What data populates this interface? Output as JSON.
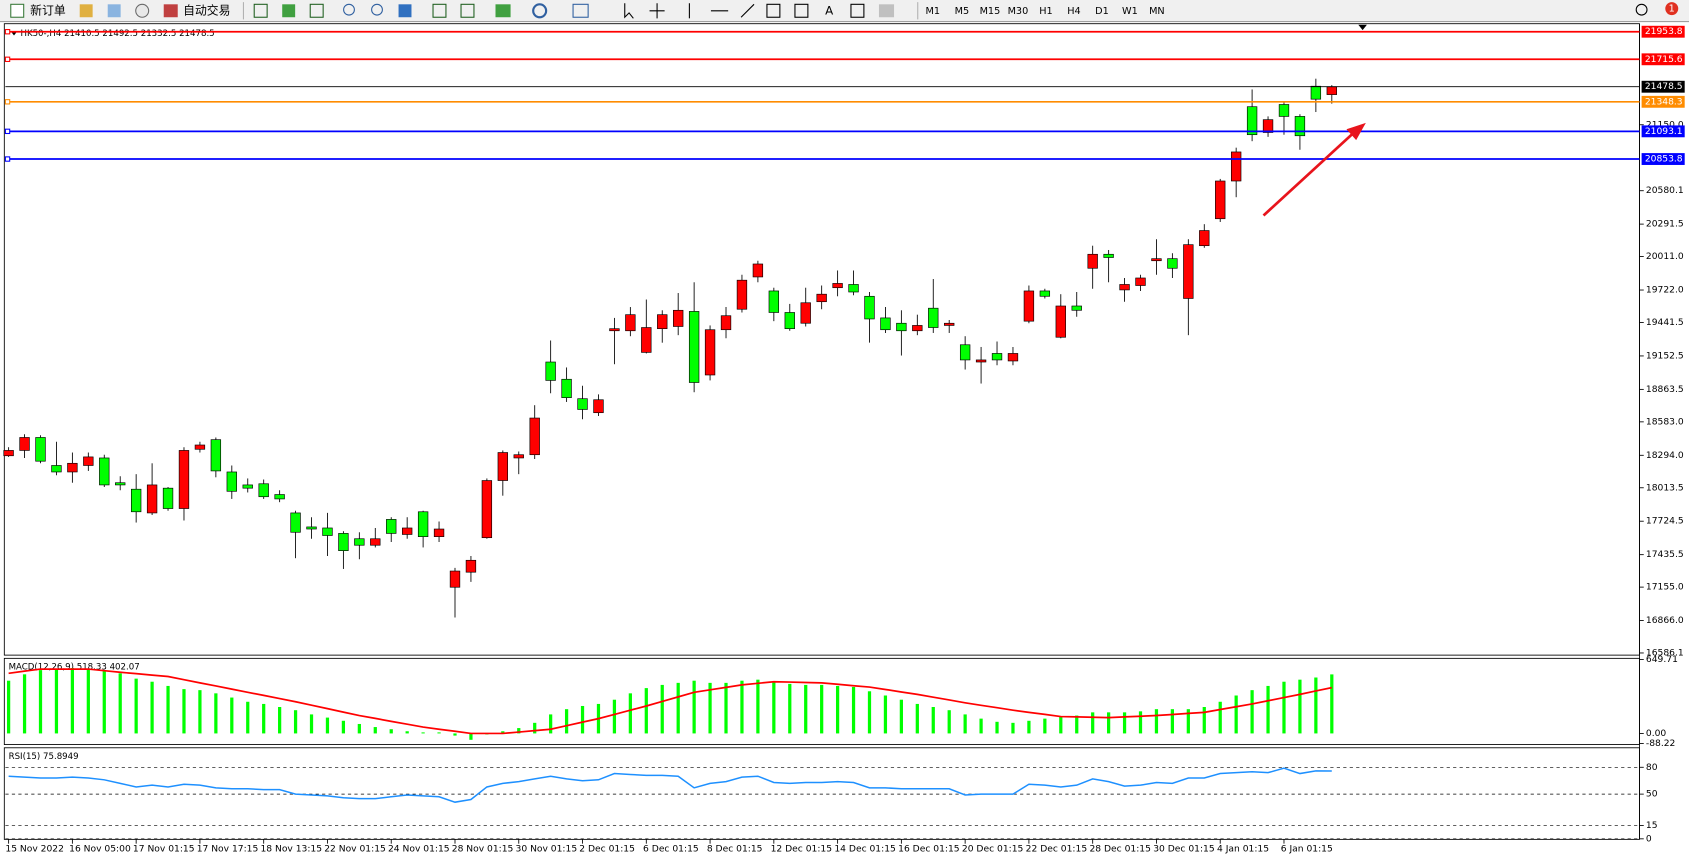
{
  "toolbar": {
    "new_order": "新订单",
    "auto_trading": "自动交易",
    "text_tool": "A",
    "periods": [
      "M1",
      "M5",
      "M15",
      "M30",
      "H1",
      "H4",
      "D1",
      "W1",
      "MN"
    ],
    "notification_count": 1
  },
  "chart_data": [
    {
      "type": "candlestick",
      "title": "HK50-,H4  21410.5 21492.5 21332.5 21478.5",
      "categories": [
        "15 Nov 2022",
        null,
        null,
        null,
        "16 Nov 05:00",
        null,
        null,
        null,
        "17 Nov 01:15",
        null,
        null,
        null,
        "17 Nov 17:15",
        null,
        null,
        null,
        "18 Nov 13:15",
        null,
        null,
        null,
        "22 Nov 01:15",
        null,
        null,
        null,
        "24 Nov 01:15",
        null,
        null,
        null,
        "28 Nov 01:15",
        null,
        null,
        null,
        "30 Nov 01:15",
        null,
        null,
        null,
        "2 Dec 01:15",
        null,
        null,
        null,
        "6 Dec 01:15",
        null,
        null,
        null,
        "8 Dec 01:15",
        null,
        null,
        null,
        "12 Dec 01:15",
        null,
        null,
        null,
        "14 Dec 01:15",
        null,
        null,
        null,
        "16 Dec 01:15",
        null,
        null,
        null,
        "20 Dec 01:15",
        null,
        null,
        null,
        "22 Dec 01:15",
        null,
        null,
        null,
        "28 Dec 01:15",
        null,
        null,
        null,
        "30 Dec 01:15",
        null,
        null,
        null,
        "4 Jan 01:15",
        null,
        null,
        null,
        "6 Jan 01:15",
        null,
        null,
        null
      ],
      "open": [
        18290,
        18336,
        18448,
        18206,
        18150,
        18206,
        18271,
        18057,
        18001,
        17796,
        18010,
        17834,
        18346,
        18429,
        18150,
        18038,
        18048,
        17955,
        17796,
        17675,
        17666,
        17619,
        17573,
        17517,
        17740,
        17610,
        17806,
        17591,
        17154,
        17284,
        17582,
        18076,
        18271,
        18299,
        19100,
        18951,
        18783,
        18662,
        19370,
        19370,
        19183,
        19388,
        19407,
        19537,
        18988,
        19379,
        19556,
        19835,
        19714,
        19528,
        19435,
        19621,
        19742,
        19770,
        19668,
        19481,
        19435,
        19370,
        19565,
        19416,
        19249,
        19100,
        19174,
        19109,
        19453,
        19714,
        19314,
        19584,
        19910,
        20031,
        19723,
        19761,
        19975,
        19993,
        19649,
        20105,
        20338,
        20664,
        21306,
        21083,
        21325,
        21222,
        21483,
        21410.5
      ],
      "high": [
        18364,
        18476,
        18467,
        18411,
        18318,
        18318,
        18299,
        18113,
        18131,
        18225,
        18020,
        18364,
        18411,
        18448,
        18206,
        18094,
        18085,
        17992,
        17815,
        17759,
        17796,
        17638,
        17629,
        17666,
        17759,
        17759,
        17815,
        17722,
        17321,
        17424,
        18094,
        18336,
        18327,
        18727,
        19286,
        19053,
        18895,
        18820,
        19481,
        19575,
        19640,
        19547,
        19696,
        19789,
        19416,
        19575,
        19854,
        19975,
        19742,
        19602,
        19742,
        19761,
        19891,
        19891,
        19705,
        19575,
        19547,
        19509,
        19817,
        19463,
        19323,
        19230,
        19277,
        19230,
        19761,
        19733,
        19686,
        19705,
        20105,
        20068,
        19826,
        19854,
        20161,
        20040,
        20161,
        20291,
        20682,
        20952,
        21455,
        21222,
        21353,
        21241,
        21548,
        21492.5
      ],
      "low": [
        18280,
        18271,
        18225,
        18122,
        18057,
        18159,
        18020,
        17992,
        17713,
        17778,
        17815,
        17731,
        18318,
        18104,
        17917,
        17973,
        17917,
        17889,
        17405,
        17573,
        17424,
        17312,
        17396,
        17498,
        17545,
        17573,
        17498,
        17545,
        16893,
        17200,
        17573,
        17945,
        18131,
        18262,
        18830,
        18755,
        18606,
        18634,
        19081,
        19323,
        19174,
        19267,
        19332,
        18839,
        18941,
        19305,
        19528,
        19789,
        19453,
        19370,
        19407,
        19556,
        19668,
        19677,
        19267,
        19351,
        19156,
        19332,
        19351,
        19351,
        19035,
        18914,
        19072,
        19072,
        19435,
        19649,
        19305,
        19491,
        19733,
        19789,
        19621,
        19714,
        19854,
        19826,
        19332,
        20087,
        20310,
        20524,
        21008,
        21045,
        21064,
        20934,
        21260,
        21332.5
      ],
      "close": [
        18336,
        18448,
        18243,
        18150,
        18225,
        18280,
        18038,
        18038,
        17806,
        18038,
        17834,
        18336,
        18383,
        18159,
        17983,
        18010,
        17936,
        17917,
        17629,
        17657,
        17601,
        17470,
        17517,
        17573,
        17619,
        17666,
        17591,
        17657,
        17294,
        17387,
        18076,
        18318,
        18299,
        18616,
        18941,
        18792,
        18690,
        18774,
        19388,
        19509,
        19398,
        19509,
        19547,
        18923,
        19379,
        19500,
        19807,
        19947,
        19528,
        19388,
        19612,
        19686,
        19779,
        19705,
        19472,
        19379,
        19370,
        19416,
        19398,
        19435,
        19118,
        19118,
        19118,
        19174,
        19714,
        19668,
        19584,
        19547,
        20031,
        20003,
        19770,
        19826,
        19993,
        19910,
        20114,
        20236,
        20664,
        20915,
        21064,
        21194,
        21222,
        21055,
        21371,
        21478.5
      ],
      "up_color": "#ff0000",
      "down_color": "#00ff00",
      "ylim": [
        16586.1,
        22023.1
      ],
      "yticks": [
        16586.1,
        {
          "value": 16866,
          "label": "16866.0"
        },
        {
          "value": 17155,
          "label": "17155.0"
        },
        17435.5,
        17724.5,
        18013.5,
        {
          "value": 18294,
          "label": "18294.0"
        },
        {
          "value": 18583,
          "label": "18583.0"
        },
        18863.5,
        19152.5,
        19441.5,
        {
          "value": 19722,
          "label": "19722.0"
        },
        {
          "value": 20011,
          "label": "20011.0"
        },
        20291.5,
        20580.1,
        {
          "value": 21150,
          "label": "21150.0"
        }
      ],
      "levels": [
        {
          "value": 21953.8,
          "color": "#ff0000"
        },
        {
          "value": 21715.6,
          "color": "#ff0000"
        },
        {
          "value": 21478.5,
          "color": "#000000"
        },
        {
          "value": 21348.3,
          "color": "#ff8c00"
        },
        {
          "value": 21093.1,
          "color": "#0000ff"
        },
        {
          "value": 20853.8,
          "color": "#0000ff"
        }
      ]
    },
    {
      "type": "macd",
      "title": "MACD(12,26,9) 518.33 402.07",
      "series": [
        {
          "type": "bar",
          "color": "#00ff00",
          "values": [
            463,
            519,
            556,
            565,
            574,
            565,
            556,
            528,
            481,
            454,
            417,
            389,
            380,
            352,
            315,
            278,
            259,
            232,
            204,
            167,
            139,
            111,
            83,
            56,
            37,
            19,
            9,
            9,
            -19,
            -56,
            -9,
            19,
            47,
            93,
            167,
            213,
            241,
            259,
            296,
            352,
            398,
            426,
            444,
            463,
            444,
            444,
            463,
            472,
            454,
            435,
            426,
            426,
            417,
            408,
            370,
            333,
            296,
            259,
            232,
            204,
            167,
            130,
            102,
            93,
            111,
            130,
            148,
            157,
            185,
            185,
            185,
            194,
            213,
            213,
            213,
            232,
            278,
            333,
            380,
            417,
            454,
            472,
            491,
            518.33
          ]
        },
        {
          "type": "line",
          "color": "#ff0000",
          "values": [
            528,
            547,
            565,
            565,
            565,
            565,
            551,
            537,
            525,
            512,
            500,
            472,
            444,
            417,
            389,
            361,
            334,
            306,
            278,
            248,
            218,
            187,
            157,
            132,
            106,
            81,
            56,
            37,
            19,
            0,
            0,
            0,
            12,
            25,
            37,
            68,
            99,
            130,
            167,
            204,
            241,
            281,
            321,
            361,
            383,
            404,
            426,
            440,
            454,
            451,
            447,
            444,
            432,
            419,
            407,
            386,
            364,
            343,
            318,
            294,
            269,
            247,
            226,
            204,
            185,
            167,
            148,
            145,
            142,
            139,
            145,
            151,
            157,
            166,
            176,
            185,
            210,
            234,
            259,
            287,
            315,
            343,
            373,
            402.07
          ]
        }
      ],
      "ylim": [
        -88.22,
        649.71
      ],
      "yticks": [
        649.71,
        {
          "value": 0,
          "label": "0.00"
        },
        -88.22
      ]
    },
    {
      "type": "line",
      "title": "RSI(15) 75.8949",
      "color": "#1e90ff",
      "values": [
        70,
        69,
        68,
        68,
        69,
        68,
        66,
        62,
        58,
        60,
        58,
        61,
        60,
        57,
        56,
        56,
        55,
        55,
        50,
        49,
        48,
        46,
        45,
        45,
        47,
        49,
        48,
        47,
        41,
        44,
        58,
        62,
        64,
        67,
        70,
        67,
        65,
        66,
        73,
        72,
        71,
        71,
        70,
        57,
        62,
        64,
        69,
        70,
        63,
        62,
        63,
        63,
        64,
        63,
        57,
        57,
        56,
        56,
        56,
        56,
        49,
        50,
        50,
        50,
        61,
        60,
        58,
        60,
        67,
        64,
        59,
        60,
        63,
        62,
        68,
        68,
        73,
        74,
        75,
        74,
        79,
        73,
        76,
        75.8949
      ],
      "ylim": [
        0,
        100
      ],
      "yticks": [
        80,
        50,
        15,
        0
      ],
      "grid": true
    }
  ]
}
